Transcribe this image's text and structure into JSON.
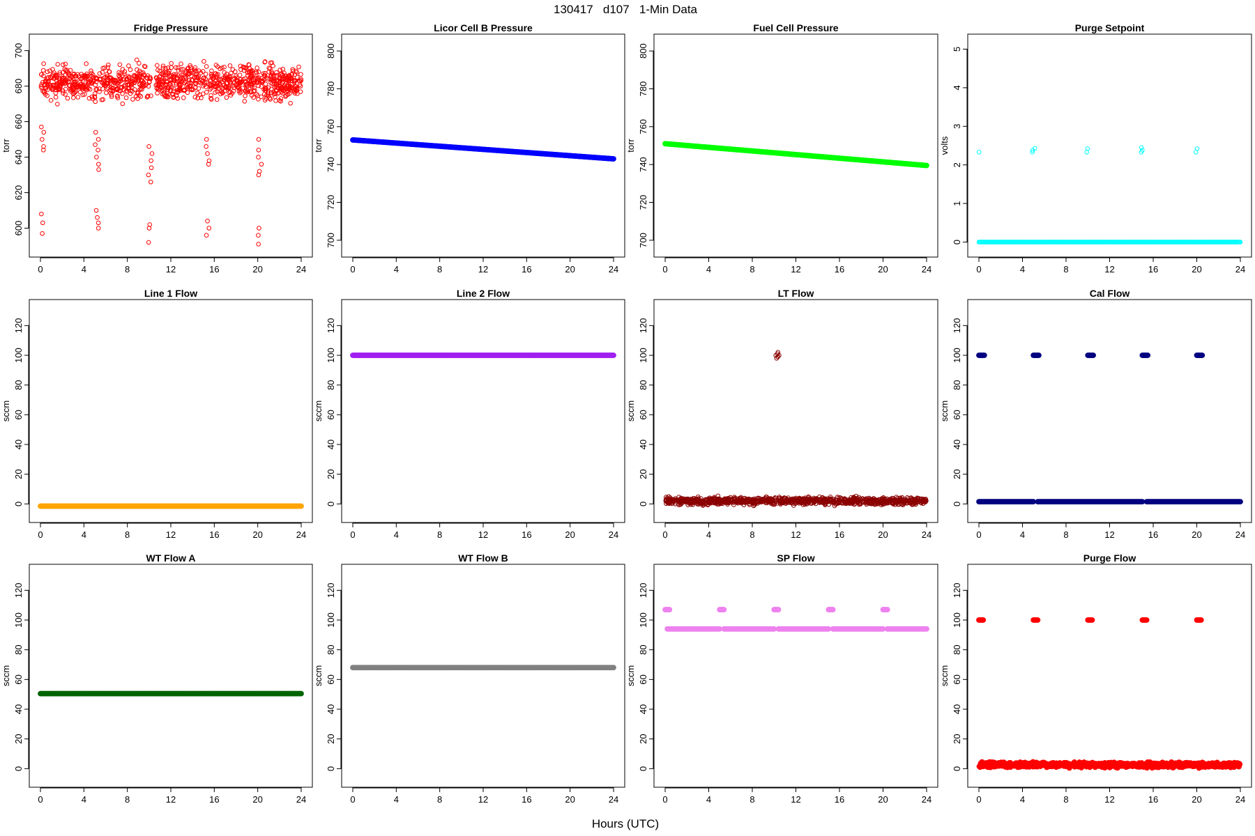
{
  "page": {
    "title": "130417   d107   1-Min Data",
    "xlabel": "Hours (UTC)"
  },
  "chart_data": [
    {
      "type": "scatter",
      "title": "Fridge Pressure",
      "ylabel": "torr",
      "xlim": [
        0,
        24
      ],
      "ylim": [
        590,
        703
      ],
      "yticks": [
        600,
        620,
        640,
        660,
        680,
        700
      ],
      "xticks": [
        0,
        4,
        8,
        12,
        16,
        20,
        24
      ],
      "marker": "open",
      "color": "#ff0000",
      "bands": [
        {
          "from": 0,
          "to": 24,
          "center": 682,
          "spread": 7,
          "gaps": [
            [
              5.2,
              5.4
            ],
            [
              10.2,
              10.6
            ],
            [
              15.3,
              15.6
            ],
            [
              20.1,
              20.3
            ]
          ]
        }
      ],
      "clusters": [
        {
          "x": 0.2,
          "ys": [
            657,
            654,
            650,
            646,
            644,
            608,
            603,
            597
          ]
        },
        {
          "x": 5.2,
          "ys": [
            654,
            650,
            647,
            644,
            640,
            636,
            633,
            610,
            606,
            603,
            600
          ]
        },
        {
          "x": 10.1,
          "ys": [
            646,
            642,
            638,
            634,
            630,
            626,
            602,
            600,
            592
          ]
        },
        {
          "x": 15.4,
          "ys": [
            650,
            646,
            642,
            638,
            636,
            604,
            600,
            596
          ]
        },
        {
          "x": 20.2,
          "ys": [
            650,
            644,
            640,
            636,
            632,
            630,
            600,
            596,
            591
          ]
        }
      ]
    },
    {
      "type": "scatter",
      "title": "Licor Cell B Pressure",
      "ylabel": "torr",
      "xlim": [
        0,
        24
      ],
      "ylim": [
        697,
        803
      ],
      "yticks": [
        700,
        720,
        740,
        760,
        780,
        800
      ],
      "xticks": [
        0,
        4,
        8,
        12,
        16,
        20,
        24
      ],
      "marker": "filled",
      "color": "#0000ff",
      "lines": [
        {
          "from": 0,
          "to": 24,
          "y_start": 753,
          "y_end": 743
        }
      ]
    },
    {
      "type": "scatter",
      "title": "Fuel Cell Pressure",
      "ylabel": "torr",
      "xlim": [
        0,
        24
      ],
      "ylim": [
        697,
        803
      ],
      "yticks": [
        700,
        720,
        740,
        760,
        780,
        800
      ],
      "xticks": [
        0,
        4,
        8,
        12,
        16,
        20,
        24
      ],
      "marker": "filled",
      "color": "#00ff00",
      "lines": [
        {
          "from": 0,
          "to": 24,
          "y_start": 751,
          "y_end": 739.5
        }
      ]
    },
    {
      "type": "scatter",
      "title": "Purge Setpoint",
      "ylabel": "volts",
      "xlim": [
        0,
        24
      ],
      "ylim": [
        -0.1,
        5.1
      ],
      "yticks": [
        0,
        1,
        2,
        3,
        4,
        5
      ],
      "xticks": [
        0,
        4,
        8,
        12,
        16,
        20,
        24
      ],
      "marker": "open",
      "color": "#00ffff",
      "lines": [
        {
          "from": 0,
          "to": 24,
          "y_start": 0,
          "y_end": 0
        }
      ],
      "clusters": [
        {
          "x": 0.1,
          "ys": [
            2.33
          ]
        },
        {
          "x": 5.0,
          "ys": [
            2.33,
            2.38,
            2.43
          ]
        },
        {
          "x": 10.0,
          "ys": [
            2.33,
            2.42
          ]
        },
        {
          "x": 15.0,
          "ys": [
            2.33,
            2.38,
            2.45
          ]
        },
        {
          "x": 20.0,
          "ys": [
            2.33,
            2.42
          ]
        }
      ]
    },
    {
      "type": "scatter",
      "title": "Line 1 Flow",
      "ylabel": "sccm",
      "xlim": [
        0,
        24
      ],
      "ylim": [
        -5,
        130
      ],
      "yticks": [
        0,
        20,
        40,
        60,
        80,
        100,
        120
      ],
      "xticks": [
        0,
        4,
        8,
        12,
        16,
        20,
        24
      ],
      "marker": "filled",
      "color": "#ffa500",
      "lines": [
        {
          "from": 0,
          "to": 24,
          "y_start": -1.5,
          "y_end": -1.5
        }
      ]
    },
    {
      "type": "scatter",
      "title": "Line 2 Flow",
      "ylabel": "sccm",
      "xlim": [
        0,
        24
      ],
      "ylim": [
        -5,
        130
      ],
      "yticks": [
        0,
        20,
        40,
        60,
        80,
        100,
        120
      ],
      "xticks": [
        0,
        4,
        8,
        12,
        16,
        20,
        24
      ],
      "marker": "filled",
      "color": "#a020f0",
      "lines": [
        {
          "from": 0,
          "to": 24,
          "y_start": 100,
          "y_end": 100
        }
      ]
    },
    {
      "type": "scatter",
      "title": "LT Flow",
      "ylabel": "sccm",
      "xlim": [
        0,
        24
      ],
      "ylim": [
        -5,
        130
      ],
      "yticks": [
        0,
        20,
        40,
        60,
        80,
        100,
        120
      ],
      "xticks": [
        0,
        4,
        8,
        12,
        16,
        20,
        24
      ],
      "marker": "open",
      "color": "#8b0000",
      "bands": [
        {
          "from": 0,
          "to": 24,
          "center": 2,
          "spread": 1.8,
          "gaps": []
        }
      ],
      "clusters": [
        {
          "x": 10.3,
          "ys": [
            98,
            99,
            100,
            101,
            102,
            100,
            99
          ]
        }
      ]
    },
    {
      "type": "scatter",
      "title": "Cal Flow",
      "ylabel": "sccm",
      "xlim": [
        0,
        24
      ],
      "ylim": [
        -5,
        130
      ],
      "yticks": [
        0,
        20,
        40,
        60,
        80,
        100,
        120
      ],
      "xticks": [
        0,
        4,
        8,
        12,
        16,
        20,
        24
      ],
      "marker": "filled",
      "color": "#000080",
      "lines": [
        {
          "from": 0,
          "to": 5.0,
          "y_start": 1.5,
          "y_end": 1.5
        },
        {
          "from": 5.4,
          "to": 15.0,
          "y_start": 1.5,
          "y_end": 1.5
        },
        {
          "from": 15.4,
          "to": 24,
          "y_start": 1.5,
          "y_end": 1.5
        },
        {
          "from": 0.0,
          "to": 0.5,
          "y_start": 100,
          "y_end": 100
        },
        {
          "from": 5.0,
          "to": 5.5,
          "y_start": 100,
          "y_end": 100
        },
        {
          "from": 10.0,
          "to": 10.5,
          "y_start": 100,
          "y_end": 100
        },
        {
          "from": 15.0,
          "to": 15.5,
          "y_start": 100,
          "y_end": 100
        },
        {
          "from": 20.0,
          "to": 20.5,
          "y_start": 100,
          "y_end": 100
        }
      ]
    },
    {
      "type": "scatter",
      "title": "WT Flow A",
      "ylabel": "sccm",
      "xlim": [
        0,
        24
      ],
      "ylim": [
        -5,
        130
      ],
      "yticks": [
        0,
        20,
        40,
        60,
        80,
        100,
        120
      ],
      "xticks": [
        0,
        4,
        8,
        12,
        16,
        20,
        24
      ],
      "marker": "filled",
      "color": "#006400",
      "lines": [
        {
          "from": 0,
          "to": 24,
          "y_start": 50.5,
          "y_end": 50.5
        }
      ]
    },
    {
      "type": "scatter",
      "title": "WT Flow B",
      "ylabel": "sccm",
      "xlim": [
        0,
        24
      ],
      "ylim": [
        -5,
        130
      ],
      "yticks": [
        0,
        20,
        40,
        60,
        80,
        100,
        120
      ],
      "xticks": [
        0,
        4,
        8,
        12,
        16,
        20,
        24
      ],
      "marker": "filled",
      "color": "#808080",
      "lines": [
        {
          "from": 0,
          "to": 24,
          "y_start": 68,
          "y_end": 68
        }
      ]
    },
    {
      "type": "scatter",
      "title": "SP Flow",
      "ylabel": "sccm",
      "xlim": [
        0,
        24
      ],
      "ylim": [
        -5,
        130
      ],
      "yticks": [
        0,
        20,
        40,
        60,
        80,
        100,
        120
      ],
      "xticks": [
        0,
        4,
        8,
        12,
        16,
        20,
        24
      ],
      "marker": "filled",
      "color": "#ee82ee",
      "lines": [
        {
          "from": 0.2,
          "to": 5.0,
          "y_start": 94,
          "y_end": 94
        },
        {
          "from": 5.4,
          "to": 10.0,
          "y_start": 94,
          "y_end": 94
        },
        {
          "from": 10.4,
          "to": 15.0,
          "y_start": 94,
          "y_end": 94
        },
        {
          "from": 15.4,
          "to": 20.0,
          "y_start": 94,
          "y_end": 94
        },
        {
          "from": 20.4,
          "to": 24,
          "y_start": 94,
          "y_end": 94
        },
        {
          "from": 0.0,
          "to": 0.4,
          "y_start": 107,
          "y_end": 107
        },
        {
          "from": 5.0,
          "to": 5.4,
          "y_start": 107,
          "y_end": 107
        },
        {
          "from": 10.0,
          "to": 10.4,
          "y_start": 107,
          "y_end": 107
        },
        {
          "from": 15.0,
          "to": 15.4,
          "y_start": 107,
          "y_end": 107
        },
        {
          "from": 20.0,
          "to": 20.4,
          "y_start": 107,
          "y_end": 107
        }
      ]
    },
    {
      "type": "scatter",
      "title": "Purge Flow",
      "ylabel": "sccm",
      "xlim": [
        0,
        24
      ],
      "ylim": [
        -5,
        130
      ],
      "yticks": [
        0,
        20,
        40,
        60,
        80,
        100,
        120
      ],
      "xticks": [
        0,
        4,
        8,
        12,
        16,
        20,
        24
      ],
      "marker": "filled",
      "color": "#ff0000",
      "bands": [
        {
          "from": 0,
          "to": 24,
          "center": 2.5,
          "spread": 1.2,
          "gaps": []
        }
      ],
      "lines": [
        {
          "from": 0.0,
          "to": 0.4,
          "y_start": 100,
          "y_end": 100
        },
        {
          "from": 5.0,
          "to": 5.4,
          "y_start": 100,
          "y_end": 100
        },
        {
          "from": 10.0,
          "to": 10.4,
          "y_start": 100,
          "y_end": 100
        },
        {
          "from": 15.0,
          "to": 15.4,
          "y_start": 100,
          "y_end": 100
        },
        {
          "from": 20.0,
          "to": 20.4,
          "y_start": 100,
          "y_end": 100
        }
      ]
    }
  ]
}
